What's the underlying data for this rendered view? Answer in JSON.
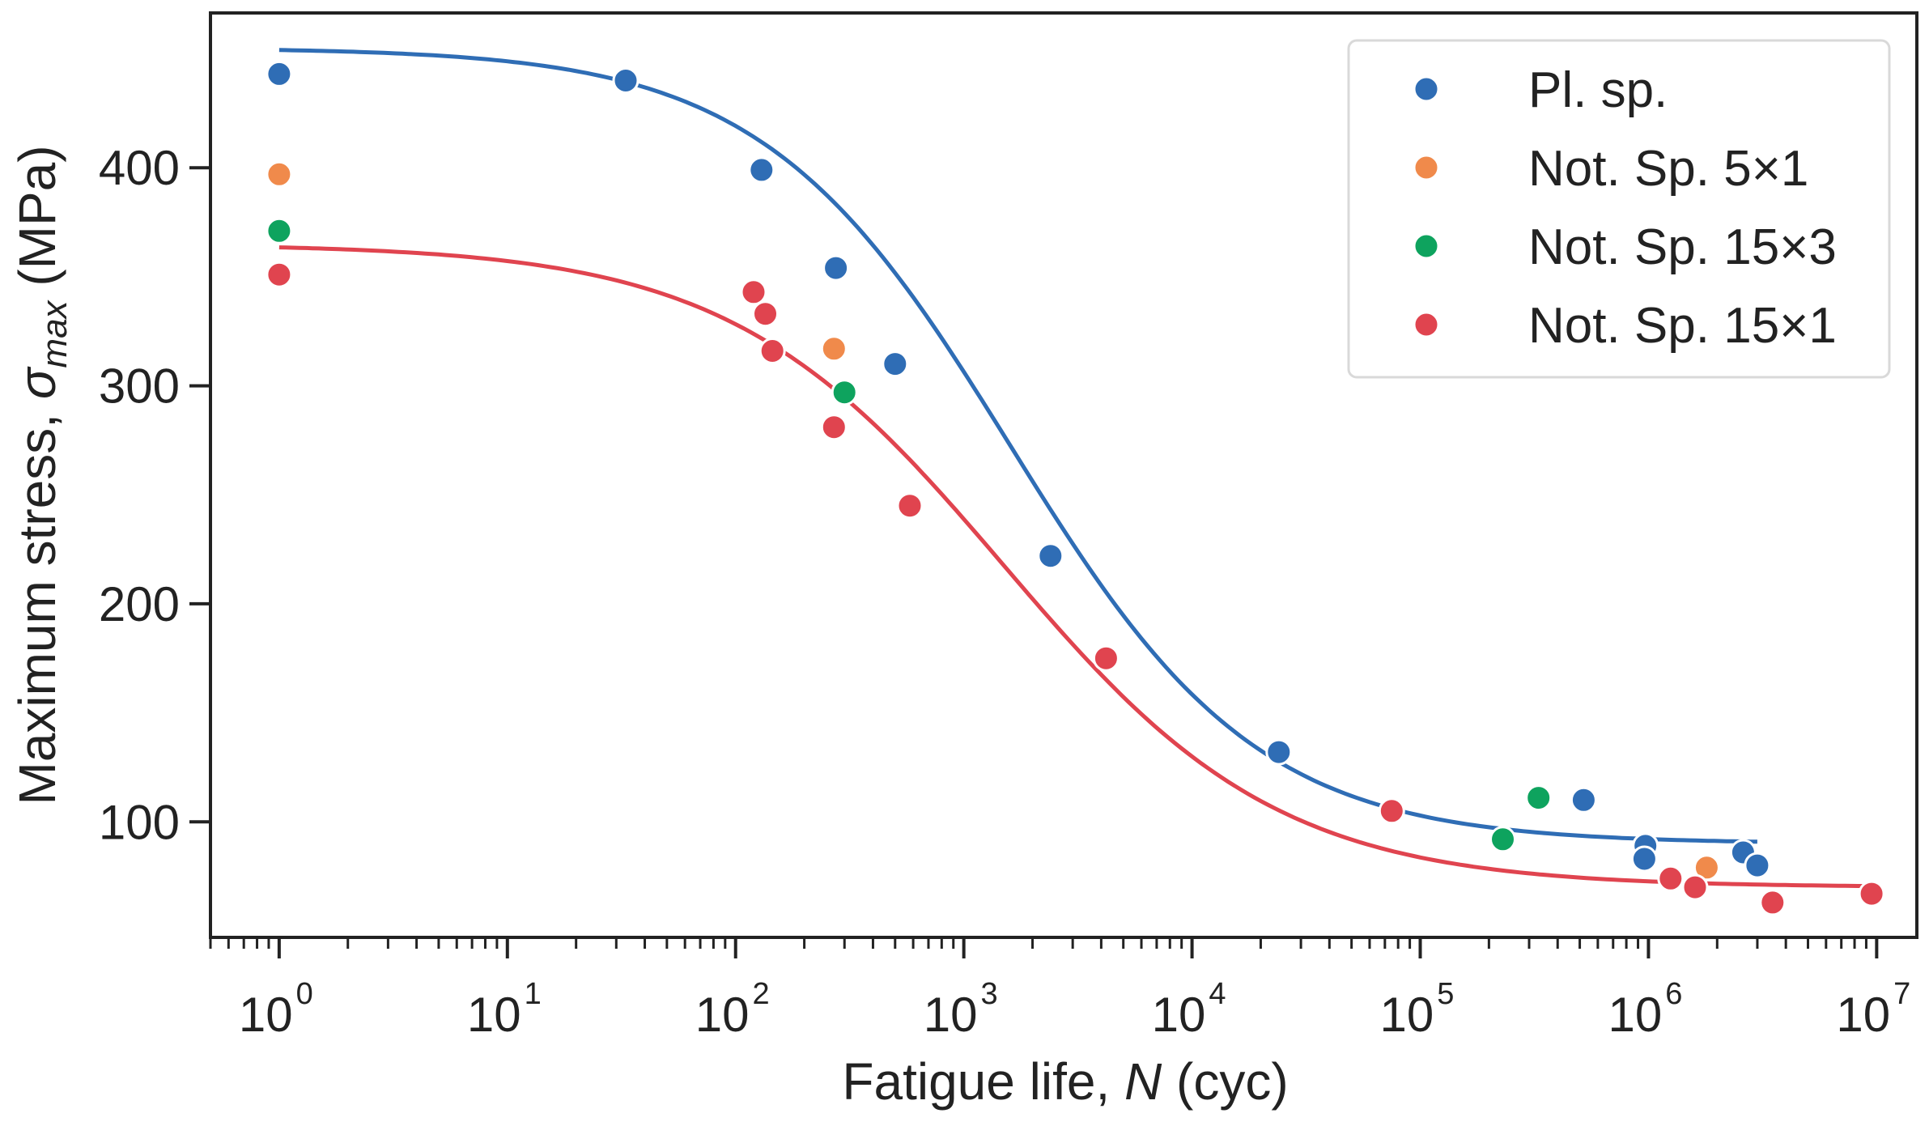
{
  "chart_data": {
    "type": "scatter",
    "title": "",
    "xlabel": {
      "prefix": "Fatigue life, ",
      "var": "N",
      "suffix": " (cyc)"
    },
    "ylabel": {
      "prefix": "Maximum stress, ",
      "var": "σ",
      "sub": "max",
      "suffix": " (MPa)"
    },
    "xscale": "log",
    "xlim": [
      0.5,
      15000000
    ],
    "ylim": [
      47,
      471
    ],
    "x_ticks": [
      {
        "base": "10",
        "exp": "0",
        "value": 1
      },
      {
        "base": "10",
        "exp": "1",
        "value": 10
      },
      {
        "base": "10",
        "exp": "2",
        "value": 100
      },
      {
        "base": "10",
        "exp": "3",
        "value": 1000
      },
      {
        "base": "10",
        "exp": "4",
        "value": 10000
      },
      {
        "base": "10",
        "exp": "5",
        "value": 100000
      },
      {
        "base": "10",
        "exp": "6",
        "value": 1000000
      },
      {
        "base": "10",
        "exp": "7",
        "value": 10000000
      }
    ],
    "y_ticks": [
      {
        "label": "100",
        "value": 100
      },
      {
        "label": "200",
        "value": 200
      },
      {
        "label": "300",
        "value": 300
      },
      {
        "label": "400",
        "value": 400
      }
    ],
    "grid": false,
    "legend_position": "top-right",
    "series": [
      {
        "name": "Pl. sp.",
        "color": "#2f6db5",
        "points": [
          [
            1,
            443
          ],
          [
            33,
            440
          ],
          [
            130,
            399
          ],
          [
            275,
            354
          ],
          [
            500,
            310
          ],
          [
            2400,
            222
          ],
          [
            24000,
            132
          ],
          [
            520000,
            110
          ],
          [
            970000,
            89
          ],
          [
            960000,
            83
          ],
          [
            2600000,
            86
          ],
          [
            3000000,
            80
          ]
        ]
      },
      {
        "name": "Not. Sp. 5×1",
        "color": "#f08a4b",
        "points": [
          [
            1,
            397
          ],
          [
            270,
            317
          ],
          [
            1800000,
            79
          ]
        ]
      },
      {
        "name": "Not. Sp. 15×3",
        "color": "#0ea35e",
        "points": [
          [
            1,
            371
          ],
          [
            300,
            297
          ],
          [
            230000,
            92
          ],
          [
            330000,
            111
          ]
        ]
      },
      {
        "name": "Not. Sp. 15×1",
        "color": "#e0444f",
        "points": [
          [
            1,
            351
          ],
          [
            120,
            343
          ],
          [
            135,
            333
          ],
          [
            145,
            316
          ],
          [
            270,
            281
          ],
          [
            580,
            245
          ],
          [
            4200,
            175
          ],
          [
            75000,
            105
          ],
          [
            1250000,
            74
          ],
          [
            1600000,
            70
          ],
          [
            3500000,
            63
          ],
          [
            9500000,
            67
          ]
        ]
      }
    ],
    "fits": [
      {
        "name": "Pl. sp. fit",
        "color": "#2f6db5",
        "upper": 455,
        "lower": 90,
        "n50": 1600,
        "slope": 0.8,
        "x_range": [
          1,
          3000000
        ]
      },
      {
        "name": "Not. Sp. 15×1 fit",
        "color": "#e0444f",
        "upper": 365,
        "lower": 70,
        "n50": 1500,
        "slope": 0.72,
        "x_range": [
          1,
          9500000
        ]
      }
    ]
  }
}
